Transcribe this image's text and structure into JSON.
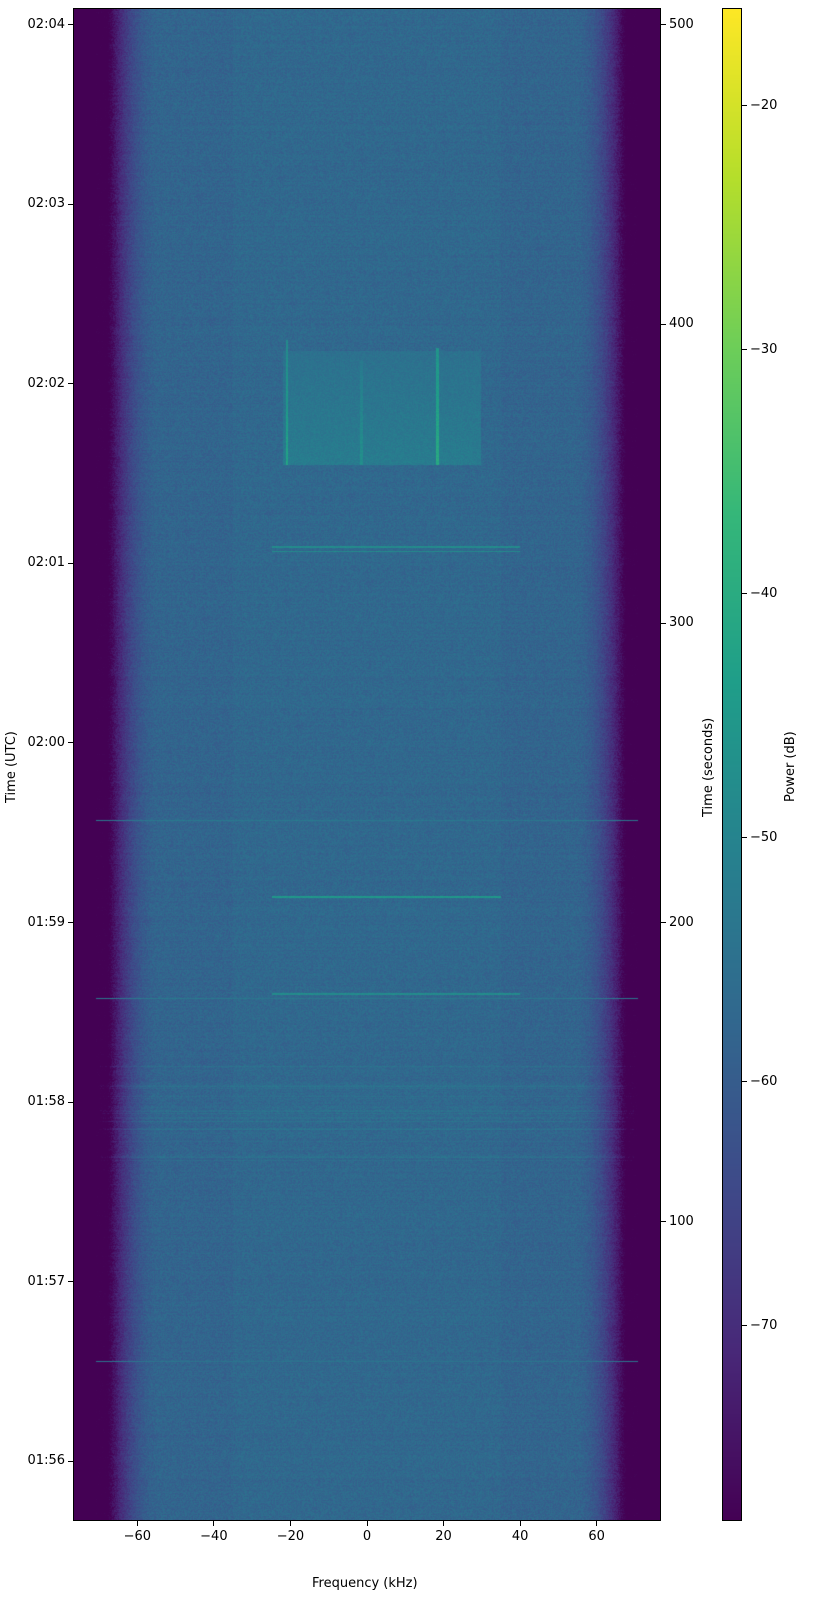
{
  "chart_data": {
    "type": "heatmap",
    "subtype": "spectrogram",
    "colormap": "viridis",
    "xlabel": "Frequency (kHz)",
    "ylabel_left": "Time (UTC)",
    "ylabel_right": "Time (seconds)",
    "colorbar_label": "Power (dB)",
    "xlim": [
      -76.8,
      76.8
    ],
    "x_ticks": [
      -60,
      -40,
      -20,
      0,
      20,
      40,
      60
    ],
    "x_tick_labels": [
      "−60",
      "−40",
      "−20",
      "0",
      "20",
      "40",
      "60"
    ],
    "ylim_seconds": [
      0,
      505.6
    ],
    "right_ticks": [
      100,
      200,
      300,
      400,
      500
    ],
    "right_tick_labels": [
      "100",
      "200",
      "300",
      "400",
      "500"
    ],
    "left_tick_seconds": [
      20,
      80,
      140,
      200,
      260,
      320,
      380,
      440,
      500
    ],
    "left_tick_labels": [
      "01:56",
      "01:57",
      "01:58",
      "01:59",
      "02:00",
      "02:01",
      "02:02",
      "02:03",
      "02:04"
    ],
    "clim": [
      -78,
      -16
    ],
    "colorbar_ticks": [
      -70,
      -60,
      -50,
      -40,
      -30,
      -20
    ],
    "colorbar_tick_labels": [
      "−70",
      "−60",
      "−50",
      "−40",
      "−30",
      "−20"
    ],
    "noise_floor_db": -58,
    "passband_khz": [
      -68,
      68
    ],
    "signals": [
      {
        "kind": "burst",
        "t_start": 353,
        "t_end": 391,
        "f_lo": -22,
        "f_hi": 30,
        "level_db": -52
      },
      {
        "kind": "carrier",
        "f": -21,
        "t_start": 353,
        "t_end": 395,
        "level_db": -42
      },
      {
        "kind": "carrier",
        "f": -1.5,
        "t_start": 353,
        "t_end": 388,
        "level_db": -47
      },
      {
        "kind": "carrier",
        "f": 18.5,
        "t_start": 353,
        "t_end": 392,
        "level_db": -40
      },
      {
        "kind": "line",
        "t": 324,
        "f_lo": -25,
        "f_hi": 40,
        "level_db": -48
      },
      {
        "kind": "line",
        "t": 325.5,
        "f_lo": -25,
        "f_hi": 40,
        "level_db": -48
      },
      {
        "kind": "line",
        "t": 234,
        "f_lo": -72,
        "f_hi": 72,
        "level_db": -53
      },
      {
        "kind": "line",
        "t": 208.5,
        "f_lo": -25,
        "f_hi": 35,
        "level_db": -45
      },
      {
        "kind": "line",
        "t": 176,
        "f_lo": -25,
        "f_hi": 40,
        "level_db": -48
      },
      {
        "kind": "line",
        "t": 174.5,
        "f_lo": -72,
        "f_hi": 72,
        "level_db": -53
      },
      {
        "kind": "line",
        "t": 53,
        "f_lo": -72,
        "f_hi": 72,
        "level_db": -54
      },
      {
        "kind": "band",
        "t_start": 120,
        "t_end": 152,
        "level_db": -55
      }
    ]
  }
}
